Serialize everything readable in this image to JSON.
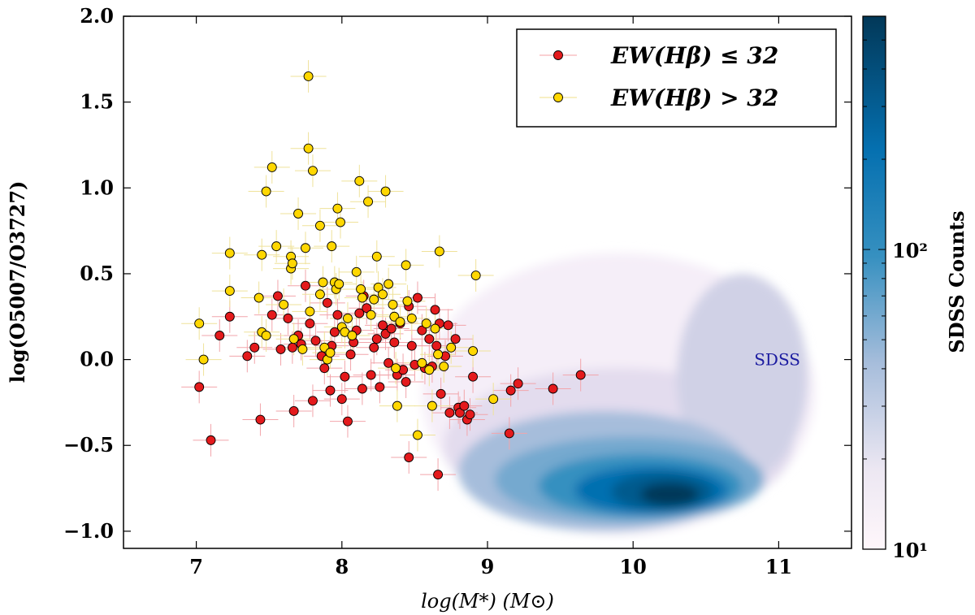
{
  "chart_data": {
    "type": "scatter",
    "xlabel": "log(M*) (M⊙)",
    "ylabel": "log(O5007/O3727)",
    "xlim": [
      6.5,
      11.5
    ],
    "ylim": [
      -1.1,
      2.0
    ],
    "x_ticks": [
      7,
      8,
      9,
      10,
      11
    ],
    "y_ticks": [
      -1.0,
      -0.5,
      0.0,
      0.5,
      1.0,
      1.5,
      2.0
    ],
    "x_tick_labels": [
      "7",
      "8",
      "9",
      "10",
      "11"
    ],
    "y_tick_labels": [
      "−1.0",
      "−0.5",
      "0.0",
      "0.5",
      "1.0",
      "1.5",
      "2.0"
    ],
    "grid": false,
    "legend_position": "top-right",
    "legend": [
      {
        "label": "EW(Hβ) ≤ 32",
        "color": "#e41a1c"
      },
      {
        "label": "EW(Hβ) > 32",
        "color": "#ffd700"
      }
    ],
    "annotations": [
      {
        "text": "SDSS",
        "x": 10.99,
        "y": 0.0,
        "color": "#1a1aa0"
      }
    ],
    "colorbar": {
      "label": "SDSS Counts",
      "scale": "log",
      "range": [
        10,
        600
      ],
      "tick_labels": [
        "10¹",
        "10²"
      ],
      "tick_values": [
        10,
        100
      ],
      "colormap": "PuBu"
    },
    "series": [
      {
        "name": "EW(Hβ) ≤ 32",
        "color": "#e41a1c",
        "points": [
          [
            7.02,
            -0.16
          ],
          [
            7.1,
            -0.47
          ],
          [
            7.16,
            0.14
          ],
          [
            7.23,
            0.25
          ],
          [
            7.35,
            0.02
          ],
          [
            7.4,
            0.07
          ],
          [
            7.44,
            -0.35
          ],
          [
            7.52,
            0.26
          ],
          [
            7.56,
            0.37
          ],
          [
            7.58,
            0.06
          ],
          [
            7.63,
            0.24
          ],
          [
            7.67,
            -0.3
          ],
          [
            7.66,
            0.07
          ],
          [
            7.7,
            0.14
          ],
          [
            7.72,
            0.09
          ],
          [
            7.75,
            0.43
          ],
          [
            7.78,
            0.21
          ],
          [
            7.8,
            -0.24
          ],
          [
            7.82,
            0.11
          ],
          [
            7.86,
            0.02
          ],
          [
            7.88,
            -0.05
          ],
          [
            7.9,
            0.33
          ],
          [
            7.92,
            -0.18
          ],
          [
            7.93,
            0.08
          ],
          [
            7.95,
            0.16
          ],
          [
            7.97,
            0.26
          ],
          [
            8.0,
            -0.23
          ],
          [
            8.02,
            -0.1
          ],
          [
            8.04,
            -0.36
          ],
          [
            8.06,
            0.03
          ],
          [
            8.08,
            0.1
          ],
          [
            8.1,
            0.17
          ],
          [
            8.12,
            0.27
          ],
          [
            8.14,
            -0.17
          ],
          [
            8.15,
            0.37
          ],
          [
            8.17,
            0.3
          ],
          [
            8.2,
            -0.09
          ],
          [
            8.22,
            0.07
          ],
          [
            8.24,
            0.12
          ],
          [
            8.26,
            -0.16
          ],
          [
            8.28,
            0.2
          ],
          [
            8.3,
            0.15
          ],
          [
            8.32,
            -0.02
          ],
          [
            8.34,
            0.18
          ],
          [
            8.36,
            0.1
          ],
          [
            8.38,
            -0.09
          ],
          [
            8.4,
            0.21
          ],
          [
            8.42,
            -0.06
          ],
          [
            8.44,
            -0.13
          ],
          [
            8.46,
            0.31
          ],
          [
            8.46,
            -0.57
          ],
          [
            8.48,
            0.08
          ],
          [
            8.5,
            -0.03
          ],
          [
            8.52,
            0.36
          ],
          [
            8.55,
            0.17
          ],
          [
            8.57,
            -0.05
          ],
          [
            8.6,
            0.12
          ],
          [
            8.62,
            -0.04
          ],
          [
            8.64,
            0.29
          ],
          [
            8.65,
            0.08
          ],
          [
            8.66,
            -0.67
          ],
          [
            8.67,
            0.21
          ],
          [
            8.68,
            -0.2
          ],
          [
            8.71,
            0.02
          ],
          [
            8.73,
            0.2
          ],
          [
            8.74,
            -0.31
          ],
          [
            8.78,
            0.12
          ],
          [
            8.8,
            -0.28
          ],
          [
            8.81,
            -0.31
          ],
          [
            8.84,
            -0.27
          ],
          [
            8.86,
            -0.35
          ],
          [
            8.88,
            -0.32
          ],
          [
            8.9,
            -0.1
          ],
          [
            9.15,
            -0.43
          ],
          [
            9.16,
            -0.18
          ],
          [
            9.21,
            -0.14
          ],
          [
            9.45,
            -0.17
          ],
          [
            9.64,
            -0.09
          ]
        ]
      },
      {
        "name": "EW(Hβ) > 32",
        "color": "#ffd700",
        "points": [
          [
            7.02,
            0.21
          ],
          [
            7.05,
            0.0
          ],
          [
            7.23,
            0.62
          ],
          [
            7.23,
            0.4
          ],
          [
            7.43,
            0.36
          ],
          [
            7.45,
            0.16
          ],
          [
            7.45,
            0.61
          ],
          [
            7.48,
            0.98
          ],
          [
            7.52,
            1.12
          ],
          [
            7.55,
            0.66
          ],
          [
            7.48,
            0.14
          ],
          [
            7.6,
            0.32
          ],
          [
            7.65,
            0.6
          ],
          [
            7.65,
            0.53
          ],
          [
            7.66,
            0.56
          ],
          [
            7.67,
            0.12
          ],
          [
            7.7,
            0.85
          ],
          [
            7.73,
            0.06
          ],
          [
            7.75,
            0.65
          ],
          [
            7.77,
            1.65
          ],
          [
            7.77,
            1.23
          ],
          [
            7.78,
            0.28
          ],
          [
            7.8,
            1.1
          ],
          [
            7.85,
            0.78
          ],
          [
            7.85,
            0.38
          ],
          [
            7.87,
            0.45
          ],
          [
            7.88,
            0.07
          ],
          [
            7.9,
            0.0
          ],
          [
            7.92,
            0.04
          ],
          [
            7.93,
            0.66
          ],
          [
            7.95,
            0.45
          ],
          [
            7.96,
            0.41
          ],
          [
            7.97,
            0.88
          ],
          [
            7.98,
            0.44
          ],
          [
            7.99,
            0.8
          ],
          [
            8.0,
            0.19
          ],
          [
            8.02,
            0.16
          ],
          [
            8.04,
            0.24
          ],
          [
            8.07,
            0.14
          ],
          [
            8.1,
            0.51
          ],
          [
            8.12,
            1.04
          ],
          [
            8.13,
            0.41
          ],
          [
            8.14,
            0.36
          ],
          [
            8.18,
            0.92
          ],
          [
            8.2,
            0.26
          ],
          [
            8.22,
            0.35
          ],
          [
            8.24,
            0.6
          ],
          [
            8.25,
            0.42
          ],
          [
            8.28,
            0.38
          ],
          [
            8.3,
            0.98
          ],
          [
            8.32,
            0.44
          ],
          [
            8.35,
            0.32
          ],
          [
            8.36,
            0.25
          ],
          [
            8.37,
            -0.05
          ],
          [
            8.38,
            -0.27
          ],
          [
            8.4,
            0.22
          ],
          [
            8.44,
            0.55
          ],
          [
            8.45,
            0.34
          ],
          [
            8.48,
            0.24
          ],
          [
            8.52,
            -0.44
          ],
          [
            8.55,
            -0.02
          ],
          [
            8.58,
            0.21
          ],
          [
            8.6,
            -0.06
          ],
          [
            8.62,
            -0.27
          ],
          [
            8.64,
            0.18
          ],
          [
            8.66,
            0.03
          ],
          [
            8.67,
            0.63
          ],
          [
            8.7,
            -0.04
          ],
          [
            8.75,
            0.07
          ],
          [
            8.9,
            0.05
          ],
          [
            8.92,
            0.49
          ],
          [
            9.04,
            -0.23
          ]
        ]
      }
    ]
  }
}
